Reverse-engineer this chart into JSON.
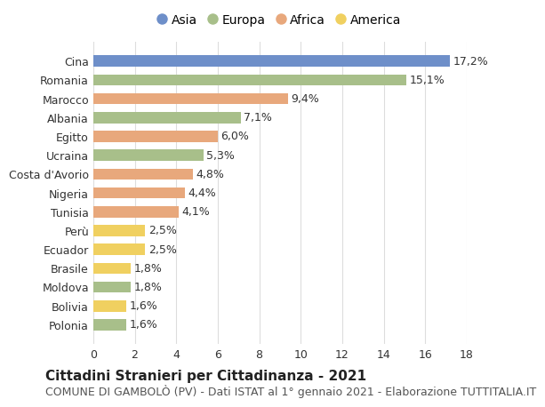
{
  "categories": [
    "Cina",
    "Romania",
    "Marocco",
    "Albania",
    "Egitto",
    "Ucraina",
    "Costa d'Avorio",
    "Nigeria",
    "Tunisia",
    "Perù",
    "Ecuador",
    "Brasile",
    "Moldova",
    "Bolivia",
    "Polonia"
  ],
  "values": [
    17.2,
    15.1,
    9.4,
    7.1,
    6.0,
    5.3,
    4.8,
    4.4,
    4.1,
    2.5,
    2.5,
    1.8,
    1.8,
    1.6,
    1.6
  ],
  "labels": [
    "17,2%",
    "15,1%",
    "9,4%",
    "7,1%",
    "6,0%",
    "5,3%",
    "4,8%",
    "4,4%",
    "4,1%",
    "2,5%",
    "2,5%",
    "1,8%",
    "1,8%",
    "1,6%",
    "1,6%"
  ],
  "continents": [
    "Asia",
    "Europa",
    "Africa",
    "Europa",
    "Africa",
    "Europa",
    "Africa",
    "Africa",
    "Africa",
    "America",
    "America",
    "America",
    "Europa",
    "America",
    "Europa"
  ],
  "continent_colors": {
    "Asia": "#6e8fc9",
    "Europa": "#a8bf8a",
    "Africa": "#e8a87c",
    "America": "#f0d060"
  },
  "legend_order": [
    "Asia",
    "Europa",
    "Africa",
    "America"
  ],
  "title_bold": "Cittadini Stranieri per Cittadinanza - 2021",
  "subtitle": "COMUNE DI GAMBOLÒ (PV) - Dati ISTAT al 1° gennaio 2021 - Elaborazione TUTTITALIA.IT",
  "xlim": [
    0,
    18
  ],
  "xticks": [
    0,
    2,
    4,
    6,
    8,
    10,
    12,
    14,
    16,
    18
  ],
  "background_color": "#ffffff",
  "grid_color": "#dddddd",
  "bar_height": 0.6,
  "label_fontsize": 9,
  "tick_fontsize": 9,
  "legend_fontsize": 10,
  "title_fontsize": 11,
  "subtitle_fontsize": 9
}
